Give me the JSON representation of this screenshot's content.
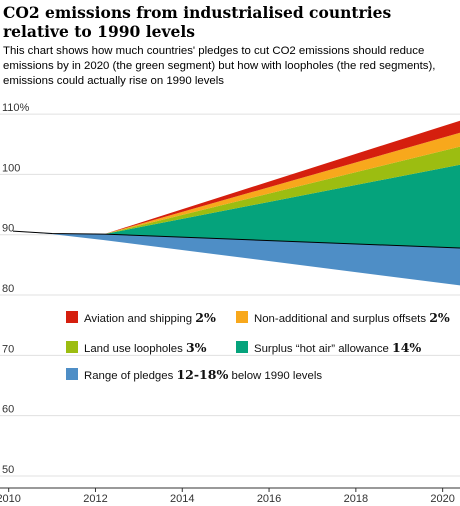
{
  "chart_data": {
    "type": "area",
    "title": "CO2 emissions from industrialised countries relative to 1990 levels",
    "subtitle": "This chart shows how much countries' pledges to cut CO2 emissions should reduce emissions by in 2020 (the green segment) but how with loopholes (the red segments), emissions could actually rise on 1990 levels",
    "xlim": [
      2009.8,
      2020.4
    ],
    "ylim": [
      48,
      112
    ],
    "x_ticks": [
      2010,
      2012,
      2014,
      2016,
      2018,
      2020
    ],
    "y_ticks": [
      {
        "value": 110,
        "label": "110%"
      },
      {
        "value": 100,
        "label": "100"
      },
      {
        "value": 90,
        "label": "90"
      },
      {
        "value": 80,
        "label": "80"
      },
      {
        "value": 70,
        "label": "70"
      },
      {
        "value": 60,
        "label": "60"
      },
      {
        "value": 50,
        "label": "50"
      }
    ],
    "x": [
      2010.1,
      2011,
      2012.2,
      2020.4
    ],
    "series": [
      {
        "key": "pledges_range",
        "lower": [
          90.6,
          90.1,
          89.1,
          81.6
        ],
        "upper": [
          90.6,
          90.2,
          90.1,
          87.8
        ]
      },
      {
        "key": "hot_air",
        "lower": [
          90.6,
          90.2,
          90.1,
          87.8
        ],
        "upper": [
          90.6,
          90.2,
          90.1,
          101.6
        ]
      },
      {
        "key": "land_use",
        "lower": [
          90.6,
          90.2,
          90.1,
          101.6
        ],
        "upper": [
          90.6,
          90.2,
          90.1,
          104.6
        ]
      },
      {
        "key": "offsets",
        "lower": [
          90.6,
          90.2,
          90.1,
          104.6
        ],
        "upper": [
          90.6,
          90.2,
          90.1,
          106.9
        ]
      },
      {
        "key": "aviation",
        "lower": [
          90.6,
          90.2,
          90.1,
          106.9
        ],
        "upper": [
          90.6,
          90.2,
          90.1,
          108.9
        ]
      }
    ],
    "colors": {
      "aviation": "#d51f0e",
      "offsets": "#f8a81c",
      "land_use": "#9cbd11",
      "hot_air": "#05a37c",
      "pledges_range": "#4e8ec6",
      "line": "#000000",
      "grid": "#e0e0e0"
    },
    "legend": [
      {
        "key": "aviation",
        "label": "Aviation and shipping ",
        "pct": "2%"
      },
      {
        "key": "offsets",
        "label": "Non-additional and surplus offsets ",
        "pct": "2%"
      },
      {
        "key": "land_use",
        "label": "Land use loopholes ",
        "pct": "3%"
      },
      {
        "key": "hot_air",
        "label": "Surplus “hot air” allowance ",
        "pct": "14%"
      },
      {
        "key": "pledges_range",
        "label": "Range of pledges ",
        "pct": "12-18%",
        "suffix": " below 1990 levels"
      }
    ]
  }
}
